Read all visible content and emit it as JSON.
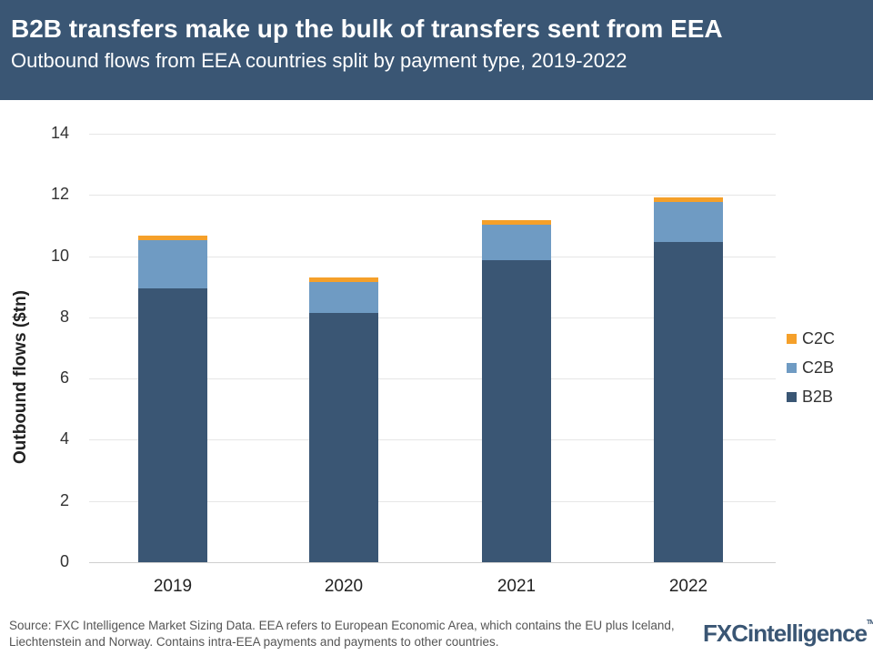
{
  "header": {
    "title": "B2B transfers make up the bulk of transfers sent from EEA",
    "subtitle": "Outbound flows from EEA countries split by payment type, 2019-2022"
  },
  "colors": {
    "header_bg": "#3a5674",
    "B2B": "#3a5674",
    "C2B": "#6f9bc3",
    "C2C": "#f5a02a"
  },
  "chart_data": {
    "type": "bar",
    "stacked": true,
    "title": "B2B transfers make up the bulk of transfers sent from EEA",
    "subtitle": "Outbound flows from EEA countries split by payment type, 2019-2022",
    "xlabel": "",
    "ylabel": "Outbound flows ($tn)",
    "ylim": [
      0,
      14
    ],
    "yticks": [
      0,
      2,
      4,
      6,
      8,
      10,
      12,
      14
    ],
    "grid": true,
    "legend_position": "right",
    "categories": [
      "2019",
      "2020",
      "2021",
      "2022"
    ],
    "series": [
      {
        "name": "B2B",
        "values": [
          8.95,
          8.15,
          9.87,
          10.46
        ]
      },
      {
        "name": "C2B",
        "values": [
          1.57,
          1.01,
          1.16,
          1.31
        ]
      },
      {
        "name": "C2C",
        "values": [
          0.15,
          0.14,
          0.15,
          0.15
        ]
      }
    ]
  },
  "legend": {
    "items": [
      "C2C",
      "C2B",
      "B2B"
    ]
  },
  "footer": {
    "source": "Source: FXC Intelligence Market Sizing Data. EEA refers to European Economic Area, which contains the EU plus Iceland, Liechtenstein and Norway. Contains intra-EEA payments and payments to other countries.",
    "logo": "FXCintelligence",
    "logo_tm": "TM"
  }
}
